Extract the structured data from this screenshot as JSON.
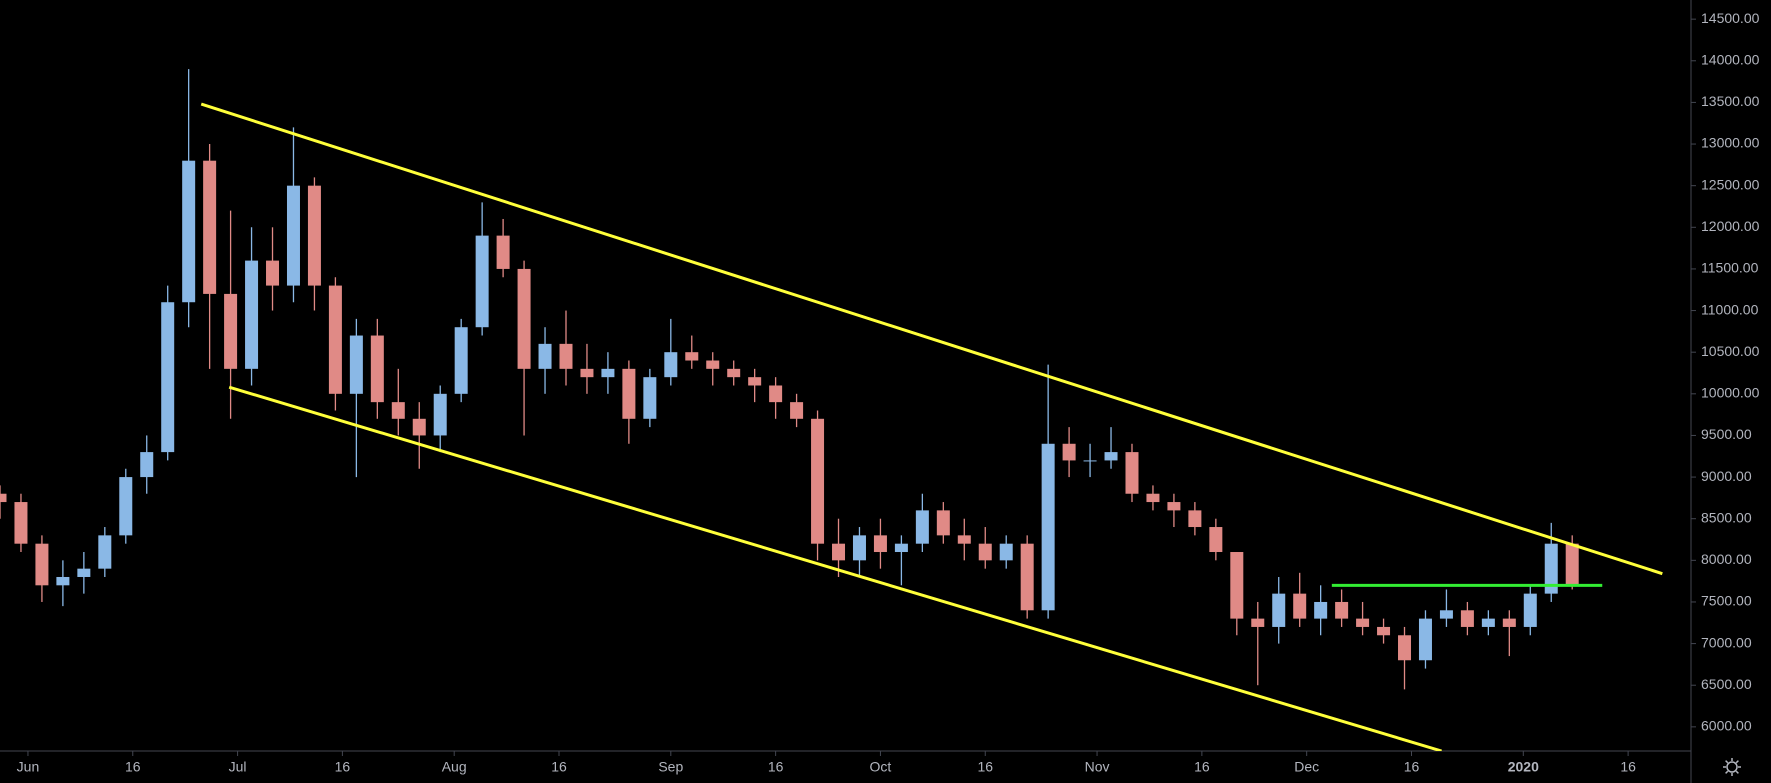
{
  "chart_data": {
    "type": "candlestick",
    "up_color": "#8ab8e6",
    "down_color": "#e08a86",
    "x": [
      0,
      3,
      6,
      9,
      12,
      15,
      18,
      21,
      24,
      27,
      30,
      33,
      36,
      39,
      42,
      45,
      48,
      51,
      54,
      57,
      60,
      63,
      66,
      69,
      72,
      75,
      78,
      81,
      84,
      87,
      90,
      93,
      96,
      99,
      102,
      105,
      108,
      111,
      114,
      117,
      120,
      123,
      126,
      129,
      132,
      135,
      138,
      141,
      144,
      147,
      150,
      153,
      156,
      159,
      162,
      165,
      168,
      171,
      174,
      177,
      180,
      183,
      186,
      189,
      192,
      195,
      198,
      201,
      204,
      207,
      210,
      213,
      216,
      219,
      222,
      225
    ],
    "open": [
      8800,
      8700,
      8200,
      7700,
      7800,
      7900,
      8300,
      9000,
      9300,
      11100,
      12800,
      11200,
      10300,
      11600,
      11300,
      12500,
      11300,
      10000,
      10700,
      9900,
      9700,
      9500,
      10000,
      10800,
      11900,
      11500,
      10300,
      10600,
      10300,
      10200,
      10300,
      9700,
      10200,
      10500,
      10400,
      10300,
      10200,
      10100,
      9900,
      9700,
      8200,
      8000,
      8300,
      8100,
      8200,
      8600,
      8300,
      8200,
      8000,
      8200,
      7400,
      9400,
      9200,
      9200,
      9300,
      8800,
      8700,
      8600,
      8400,
      8100,
      7300,
      7200,
      7600,
      7300,
      7500,
      7300,
      7200,
      7100,
      6800,
      7300,
      7400,
      7200,
      7300,
      7200,
      7600,
      8200
    ],
    "high": [
      8900,
      8800,
      8300,
      8000,
      8100,
      8400,
      9100,
      9500,
      11300,
      13900,
      13000,
      12200,
      12000,
      12000,
      13200,
      12600,
      11400,
      10900,
      10900,
      10300,
      9900,
      10100,
      10900,
      12300,
      12100,
      11600,
      10800,
      11000,
      10600,
      10500,
      10400,
      10300,
      10900,
      10700,
      10500,
      10400,
      10300,
      10200,
      10000,
      9800,
      8500,
      8400,
      8500,
      8300,
      8800,
      8700,
      8500,
      8400,
      8300,
      8300,
      10350,
      9600,
      9400,
      9600,
      9400,
      8900,
      8800,
      8700,
      8500,
      8100,
      7500,
      7800,
      7850,
      7700,
      7650,
      7500,
      7300,
      7200,
      7400,
      7650,
      7500,
      7400,
      7400,
      7700,
      8450,
      8300
    ],
    "low": [
      8500,
      8100,
      7500,
      7450,
      7600,
      7800,
      8200,
      8800,
      9200,
      10800,
      10300,
      9700,
      10100,
      11000,
      11100,
      11000,
      9800,
      9000,
      9700,
      9500,
      9100,
      9300,
      9900,
      10700,
      11400,
      9500,
      10000,
      10100,
      10000,
      10000,
      9400,
      9600,
      10100,
      10300,
      10100,
      10100,
      9900,
      9700,
      9600,
      8000,
      7800,
      7800,
      7900,
      7700,
      8100,
      8200,
      8000,
      7900,
      7900,
      7300,
      7300,
      9000,
      9000,
      9100,
      8700,
      8600,
      8400,
      8300,
      8000,
      7100,
      6500,
      7000,
      7200,
      7100,
      7200,
      7100,
      7000,
      6450,
      6700,
      7200,
      7100,
      7100,
      6850,
      7100,
      7500,
      7650
    ],
    "close": [
      8700,
      8200,
      7700,
      7800,
      7900,
      8300,
      9000,
      9300,
      11100,
      12800,
      11200,
      10300,
      11600,
      11300,
      12500,
      11300,
      10000,
      10700,
      9900,
      9700,
      9500,
      10000,
      10800,
      11900,
      11500,
      10300,
      10600,
      10300,
      10200,
      10300,
      9700,
      10200,
      10500,
      10400,
      10300,
      10200,
      10100,
      9900,
      9700,
      8200,
      8000,
      8300,
      8100,
      8200,
      8600,
      8300,
      8200,
      8000,
      8200,
      7400,
      9400,
      9200,
      9200,
      9300,
      8800,
      8700,
      8600,
      8400,
      8100,
      7300,
      7200,
      7600,
      7300,
      7500,
      7300,
      7200,
      7100,
      6800,
      7300,
      7400,
      7200,
      7300,
      7200,
      7600,
      8200,
      7700
    ],
    "lines": [
      {
        "color": "#ffff3a",
        "x": [
          28.8,
          237.9
        ],
        "y": [
          13480,
          7840
        ]
      },
      {
        "color": "#ffff3a",
        "x": [
          32.8,
          206.3
        ],
        "y": [
          10080,
          5710
        ]
      },
      {
        "color": "#33ee33",
        "x": [
          190.6,
          229.3
        ],
        "y": [
          7700,
          7700
        ]
      }
    ],
    "xlim": [
      0,
      242
    ],
    "xticks": [
      {
        "value": 4,
        "label": "Jun"
      },
      {
        "value": 19,
        "label": "16"
      },
      {
        "value": 34,
        "label": "Jul"
      },
      {
        "value": 49,
        "label": "16"
      },
      {
        "value": 65,
        "label": "Aug"
      },
      {
        "value": 80,
        "label": "16"
      },
      {
        "value": 96,
        "label": "Sep"
      },
      {
        "value": 111,
        "label": "16"
      },
      {
        "value": 126,
        "label": "Oct"
      },
      {
        "value": 141,
        "label": "16"
      },
      {
        "value": 157,
        "label": "Nov"
      },
      {
        "value": 172,
        "label": "16"
      },
      {
        "value": 187,
        "label": "Dec"
      },
      {
        "value": 202,
        "label": "16"
      },
      {
        "value": 218,
        "label": "2020"
      },
      {
        "value": 233,
        "label": "16"
      }
    ],
    "ylim": [
      5710,
      14730
    ],
    "yticks": [
      {
        "value": 6000,
        "label": "6000.00"
      },
      {
        "value": 6500,
        "label": "6500.00"
      },
      {
        "value": 7000,
        "label": "7000.00"
      },
      {
        "value": 7500,
        "label": "7500.00"
      },
      {
        "value": 8000,
        "label": "8000.00"
      },
      {
        "value": 8500,
        "label": "8500.00"
      },
      {
        "value": 9000,
        "label": "9000.00"
      },
      {
        "value": 9500,
        "label": "9500.00"
      },
      {
        "value": 10000,
        "label": "10000.00"
      },
      {
        "value": 10500,
        "label": "10500.00"
      },
      {
        "value": 11000,
        "label": "11000.00"
      },
      {
        "value": 11500,
        "label": "11500.00"
      },
      {
        "value": 12000,
        "label": "12000.00"
      },
      {
        "value": 12500,
        "label": "12500.00"
      },
      {
        "value": 13000,
        "label": "13000.00"
      },
      {
        "value": 13500,
        "label": "13500.00"
      },
      {
        "value": 14000,
        "label": "14000.00"
      },
      {
        "value": 14500,
        "label": "14500.00"
      }
    ]
  }
}
